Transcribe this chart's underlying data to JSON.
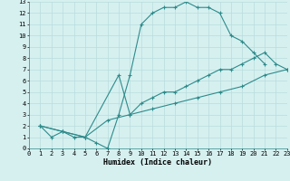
{
  "line1_x": [
    1,
    2,
    3,
    4,
    5,
    6,
    7,
    8,
    9,
    10,
    11,
    12,
    13,
    14,
    15,
    16,
    17,
    18,
    19,
    20,
    21
  ],
  "line1_y": [
    2,
    1,
    1.5,
    1,
    1,
    0.5,
    0,
    3,
    6.5,
    11,
    12,
    12.5,
    12.5,
    13,
    12.5,
    12.5,
    12,
    10,
    9.5,
    8.5,
    7.5
  ],
  "line2_x": [
    1,
    3,
    5,
    8,
    9,
    10,
    11,
    12,
    13,
    14,
    15,
    16,
    17,
    18,
    19,
    20,
    21,
    22,
    23
  ],
  "line2_y": [
    2,
    1.5,
    1,
    6.5,
    3,
    4,
    4.5,
    5,
    5,
    5.5,
    6,
    6.5,
    7,
    7,
    7.5,
    8,
    8.5,
    7.5,
    7
  ],
  "line3_x": [
    1,
    3,
    5,
    7,
    9,
    11,
    13,
    15,
    17,
    19,
    21,
    23
  ],
  "line3_y": [
    2,
    1.5,
    1,
    2.5,
    3,
    3.5,
    4,
    4.5,
    5,
    5.5,
    6.5,
    7
  ],
  "color": "#2e8b8b",
  "bg_color": "#d6f0f0",
  "grid_color": "#b8dcdc",
  "xlabel": "Humidex (Indice chaleur)",
  "xlim": [
    0,
    23
  ],
  "ylim": [
    0,
    13
  ],
  "xticks": [
    0,
    1,
    2,
    3,
    4,
    5,
    6,
    7,
    8,
    9,
    10,
    11,
    12,
    13,
    14,
    15,
    16,
    17,
    18,
    19,
    20,
    21,
    22,
    23
  ],
  "yticks": [
    0,
    1,
    2,
    3,
    4,
    5,
    6,
    7,
    8,
    9,
    10,
    11,
    12,
    13
  ]
}
